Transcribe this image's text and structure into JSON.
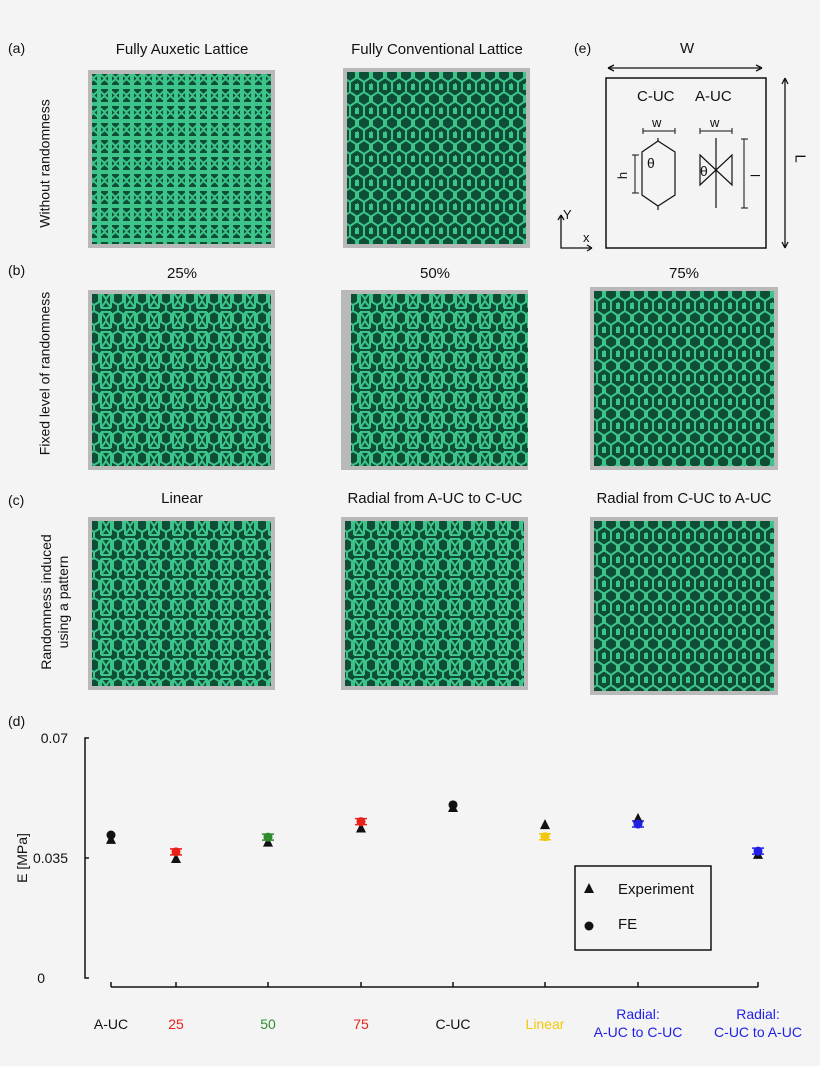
{
  "panels": {
    "a": {
      "letter": "(a)",
      "row_label": "Without randomness",
      "titles": [
        "Fully Auxetic Lattice",
        "Fully Conventional Lattice"
      ]
    },
    "b": {
      "letter": "(b)",
      "row_label": "Fixed level of randomness",
      "titles": [
        "25%",
        "50%",
        "75%"
      ]
    },
    "c": {
      "letter": "(c)",
      "row_label_1": "Randomness induced",
      "row_label_2": "using a pattern",
      "titles": [
        "Linear",
        "Radial from A-UC to C-UC",
        "Radial from C-UC to A-UC"
      ]
    },
    "d": {
      "letter": "(d)"
    },
    "e": {
      "letter": "(e)",
      "W": "W",
      "L": "L",
      "cuc": "C-UC",
      "auc": "A-UC",
      "w1": "w",
      "w2": "w",
      "h": "h",
      "l": "l",
      "theta1": "θ",
      "theta2": "θ",
      "axis_y": "Y",
      "axis_x": "x"
    }
  },
  "colors": {
    "lattice_light": "#3cc48a",
    "lattice_dark": "#0e4d36",
    "red": "#e8201c",
    "green": "#2e8b2e",
    "yellow": "#f2c80a",
    "blue": "#1f1fe6",
    "black": "#111111"
  },
  "chart_data": {
    "type": "scatter",
    "ylabel": "E [MPa]",
    "ylim": [
      0,
      0.07
    ],
    "yticks": [
      "0",
      "0.035",
      "0.07"
    ],
    "categories": [
      {
        "label": "A-UC",
        "color": "#111111"
      },
      {
        "label": "25",
        "color": "#e8201c"
      },
      {
        "label": "50",
        "color": "#2e8b2e"
      },
      {
        "label": "75",
        "color": "#e8201c"
      },
      {
        "label": "C-UC",
        "color": "#111111"
      },
      {
        "label": "Linear",
        "color": "#f2c80a"
      },
      {
        "label_1": "Radial:",
        "label_2": "A-UC to C-UC",
        "color": "#1f1fe6"
      },
      {
        "label_1": "Radial:",
        "label_2": "C-UC to A-UC",
        "color": "#1f1fe6"
      }
    ],
    "series": [
      {
        "name": "Experiment",
        "marker": "triangle",
        "values": [
          0.0403,
          0.0347,
          0.0395,
          0.0436,
          0.0496,
          0.0446,
          0.0464,
          0.0359
        ]
      },
      {
        "name": "FE",
        "marker": "circle",
        "values": [
          0.0417,
          0.0368,
          0.0411,
          0.0456,
          0.0505,
          0.0412,
          0.0449,
          0.037
        ]
      }
    ],
    "legend": "bottom-right",
    "grid": false
  }
}
